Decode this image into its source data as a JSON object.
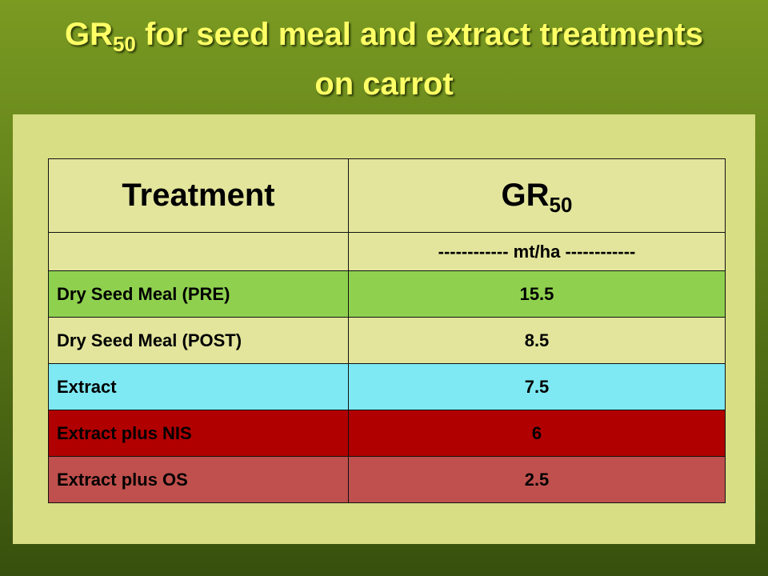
{
  "title": {
    "prefix": "GR",
    "subscript": "50",
    "line1_rest": " for seed meal and extract treatments",
    "line2": "on carrot"
  },
  "table": {
    "header": {
      "treatment": "Treatment",
      "gr_prefix": "GR",
      "gr_subscript": "50"
    },
    "units": "------------ mt/ha ------------",
    "rows": [
      {
        "treatment": "Dry Seed Meal (PRE)",
        "value": "15.5",
        "color": "#8fd14f"
      },
      {
        "treatment": "Dry Seed Meal (POST)",
        "value": "8.5",
        "color": "#e3e59c"
      },
      {
        "treatment": "Extract",
        "value": "7.5",
        "color": "#7ee9f3"
      },
      {
        "treatment": "Extract plus NIS",
        "value": "6",
        "color": "#b00000"
      },
      {
        "treatment": "Extract plus OS",
        "value": "2.5",
        "color": "#c0504d"
      }
    ]
  }
}
